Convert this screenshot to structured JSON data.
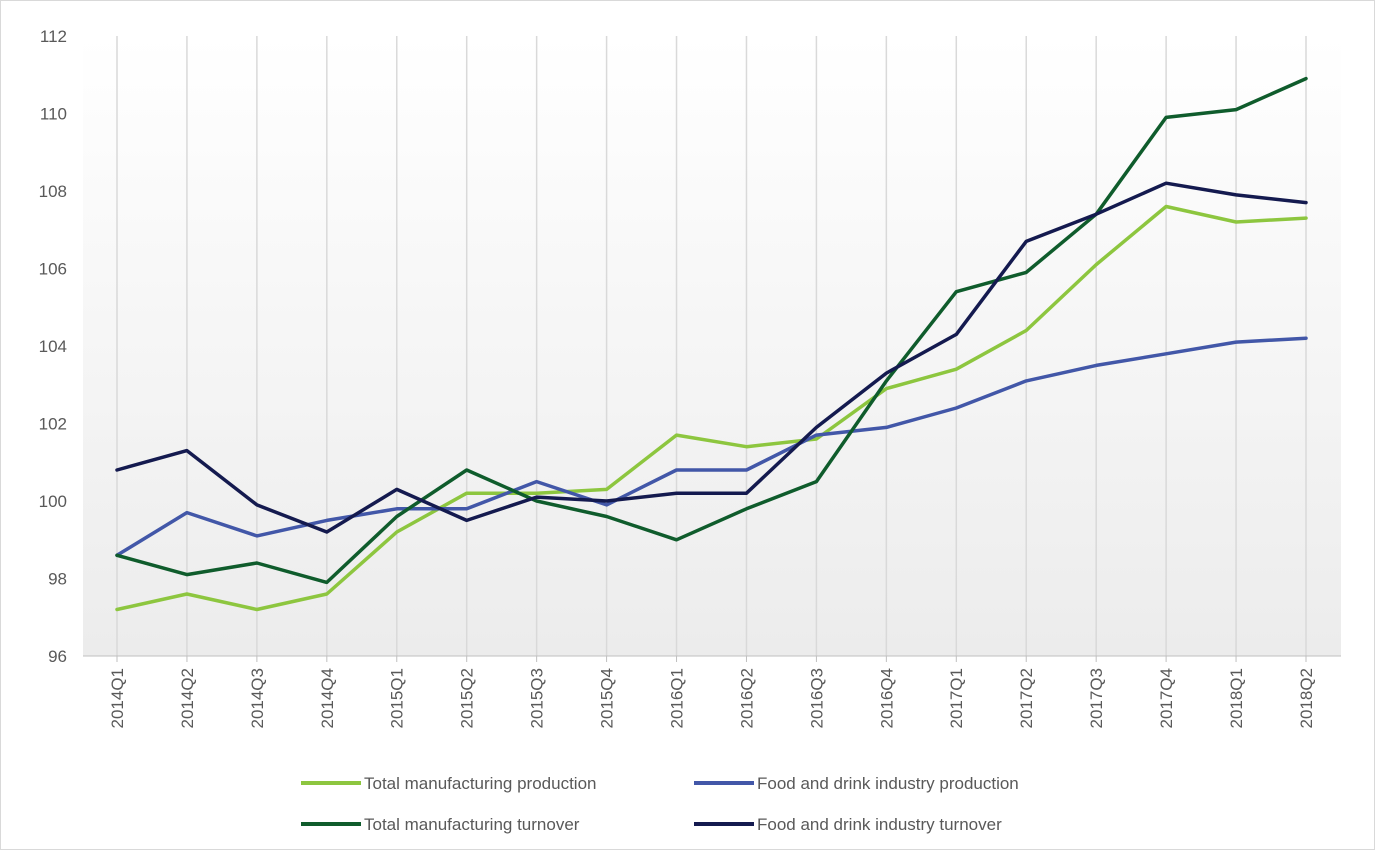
{
  "chart_data": {
    "type": "line",
    "title": "",
    "xlabel": "",
    "ylabel": "",
    "ylim": [
      96,
      112
    ],
    "yticks": [
      96,
      98,
      100,
      102,
      104,
      106,
      108,
      110,
      112
    ],
    "grid": "vertical",
    "legend_position": "bottom",
    "categories": [
      "2014Q1",
      "2014Q2",
      "2014Q3",
      "2014Q4",
      "2015Q1",
      "2015Q2",
      "2015Q3",
      "2015Q4",
      "2016Q1",
      "2016Q2",
      "2016Q3",
      "2016Q4",
      "2017Q1",
      "2017Q2",
      "2017Q3",
      "2017Q4",
      "2018Q1",
      "2018Q2"
    ],
    "series": [
      {
        "name": "Total manufacturing production",
        "color": "#8dc63f",
        "values": [
          97.2,
          97.6,
          97.2,
          97.6,
          99.2,
          100.2,
          100.2,
          100.3,
          101.7,
          101.4,
          101.6,
          102.9,
          103.4,
          104.4,
          106.1,
          107.6,
          107.2,
          107.3
        ]
      },
      {
        "name": "Food and drink industry production",
        "color": "#4257a8",
        "values": [
          98.6,
          99.7,
          99.1,
          99.5,
          99.8,
          99.8,
          100.5,
          99.9,
          100.8,
          100.8,
          101.7,
          101.9,
          102.4,
          103.1,
          103.5,
          103.8,
          104.1,
          104.2
        ]
      },
      {
        "name": "Total manufacturing turnover",
        "color": "#0f5c2c",
        "values": [
          98.6,
          98.1,
          98.4,
          97.9,
          99.6,
          100.8,
          100.0,
          99.6,
          99.0,
          99.8,
          100.5,
          103.1,
          105.4,
          105.9,
          107.4,
          109.9,
          110.1,
          110.9
        ]
      },
      {
        "name": "Food and drink industry turnover",
        "color": "#141a4f",
        "values": [
          100.8,
          101.3,
          99.9,
          99.2,
          100.3,
          99.5,
          100.1,
          100.0,
          100.2,
          100.2,
          101.9,
          103.3,
          104.3,
          106.7,
          107.4,
          108.2,
          107.9,
          107.7
        ]
      }
    ]
  }
}
